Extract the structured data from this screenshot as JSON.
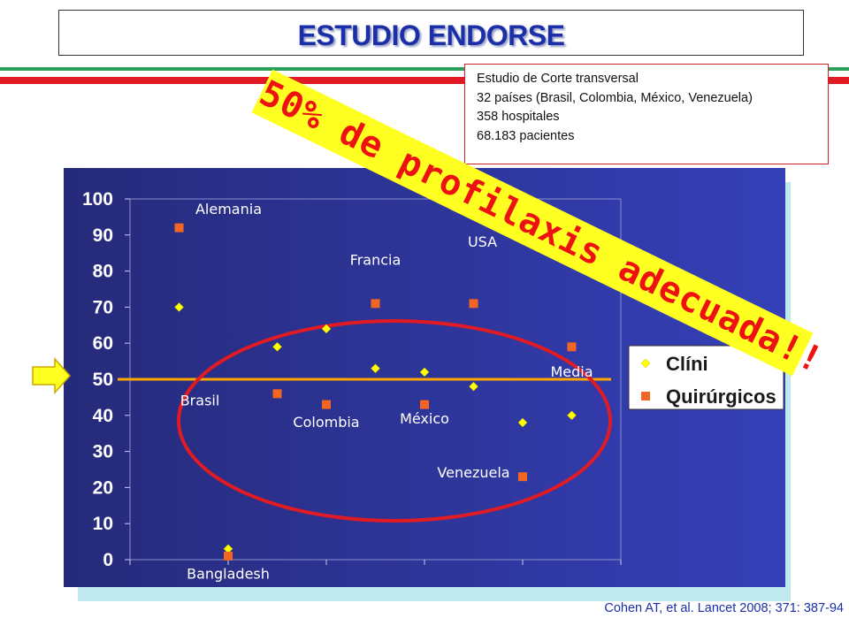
{
  "slide": {
    "title": "ESTUDIO ENDORSE",
    "info_lines": [
      "Estudio de Corte transversal",
      "32 países (Brasil, Colombia, México, Venezuela)",
      "358 hospitales",
      "68.183 pacientes"
    ],
    "banner": "50% de profilaxis adecuada!!",
    "citation": "Cohen AT, et al. Lancet 2008; 371: 387-94",
    "colors": {
      "title": "#1a2fa8",
      "banner_text": "#ee1111",
      "banner_bg": "#ffff22",
      "stripe_green": "#2aa05a",
      "stripe_red": "#e01b24",
      "chart_bg_dark": "#262a7a",
      "chart_bg_light": "#3540b8",
      "clinicos": "#ffff00",
      "quirurgicos": "#f26522",
      "reference_line": "#ffa500",
      "ellipse": "#e01b24"
    }
  },
  "chart_data": {
    "type": "scatter",
    "ylim": [
      0,
      100
    ],
    "y_ticks": [
      "0",
      "10",
      "20",
      "30",
      "40",
      "50",
      "60",
      "70",
      "80",
      "90",
      "100"
    ],
    "reference_line": 50,
    "legend_position": "right",
    "series": [
      {
        "name": "Clínicos",
        "marker": "diamond",
        "points": [
          {
            "x": 1,
            "y": 70
          },
          {
            "x": 2,
            "y": 3
          },
          {
            "x": 3,
            "y": 59
          },
          {
            "x": 4,
            "y": 64
          },
          {
            "x": 5,
            "y": 53
          },
          {
            "x": 6,
            "y": 52
          },
          {
            "x": 7,
            "y": 48
          },
          {
            "x": 8,
            "y": 38
          },
          {
            "x": 9,
            "y": 40
          }
        ]
      },
      {
        "name": "Quirúrgicos",
        "marker": "square",
        "points": [
          {
            "x": 1,
            "y": 92
          },
          {
            "x": 2,
            "y": 1
          },
          {
            "x": 3,
            "y": 46
          },
          {
            "x": 4,
            "y": 43
          },
          {
            "x": 5,
            "y": 71
          },
          {
            "x": 6,
            "y": 43
          },
          {
            "x": 7,
            "y": 71
          },
          {
            "x": 8,
            "y": 23
          },
          {
            "x": 9,
            "y": 59
          }
        ]
      }
    ],
    "legend_visible": [
      "Clíni",
      "Quirúrgicos"
    ],
    "annotations": [
      {
        "text": "Alemania",
        "x": 1,
        "y": 97
      },
      {
        "text": "USA",
        "x": 7,
        "y": 88
      },
      {
        "text": "Francia",
        "x": 5,
        "y": 83
      },
      {
        "text": "Media",
        "x": 9,
        "y": 52
      },
      {
        "text": "Brasil",
        "x": 2,
        "y": 44
      },
      {
        "text": "Colombia",
        "x": 4,
        "y": 38
      },
      {
        "text": "México",
        "x": 6,
        "y": 39
      },
      {
        "text": "Venezuela",
        "x": 7,
        "y": 24
      },
      {
        "text": "Bangladesh",
        "x": 2,
        "y": -4
      }
    ]
  }
}
